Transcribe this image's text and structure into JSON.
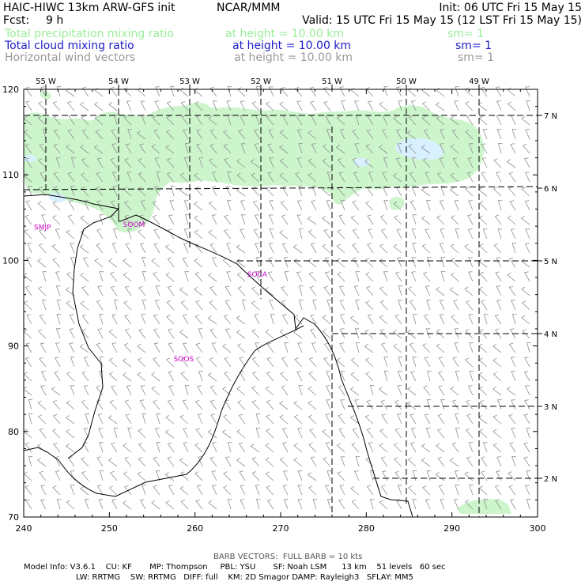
{
  "header": {
    "title": "HAIC-HIWC 13km ARW-GFS init",
    "center": "NCAR/MMM",
    "init": "Init: 06 UTC Fri 15 May 15",
    "fcst": "Fcst:",
    "fcst_hours": "9 h",
    "valid": "Valid: 15 UTC Fri 15 May 15 (12 LST Fri 15 May 15)"
  },
  "fields": [
    {
      "label": "Total precipitation mixing ratio",
      "level": "at height = 10.00 km",
      "smooth": "sm= 1",
      "color": "#99ee99"
    },
    {
      "label": "Total cloud mixing ratio",
      "level": "at height = 10.00 km",
      "smooth": "sm= 1",
      "color": "#1c1cc8"
    },
    {
      "label": "Horizontal wind vectors",
      "level": "at height = 10.00 km",
      "smooth": "sm= 1",
      "color": "#999999"
    }
  ],
  "map": {
    "x_range": [
      240,
      300
    ],
    "y_range": [
      70,
      120
    ],
    "x_ticks": [
      "240",
      "250",
      "260",
      "270",
      "280",
      "290",
      "300"
    ],
    "y_ticks": [
      "70",
      "80",
      "90",
      "100",
      "110",
      "120"
    ],
    "lon_labels": [
      "55 W",
      "54 W",
      "53 W",
      "52 W",
      "51 W",
      "50 W",
      "49 W"
    ],
    "lat_labels": [
      "7 N",
      "6 N",
      "5 N",
      "4 N",
      "3 N",
      "2 N"
    ],
    "stations": [
      {
        "id": "SMJP",
        "x": 241.2,
        "y": 103.6
      },
      {
        "id": "SOOM",
        "x": 251.6,
        "y": 103.9
      },
      {
        "id": "SOCA",
        "x": 266.1,
        "y": 98.1
      },
      {
        "id": "SOOS",
        "x": 257.5,
        "y": 88.2
      }
    ],
    "station_color": "#cc00cc",
    "precip_color": "#ccf5cc",
    "cloud_color": "#d8f0ff"
  },
  "footer": {
    "barb_note": "BARB VECTORS:  FULL BARB = 10 kts",
    "line1": "Model Info: V3.6.1    CU: KF       MP: Thompson     PBL: YSU       SF: Noah LSM      13 km    51 levels   60 sec",
    "line2": "LW: RRTMG    SW: RRTMG   DIFF: full    KM: 2D Smagor DAMP: Rayleigh3   SFLAY: MM5"
  }
}
